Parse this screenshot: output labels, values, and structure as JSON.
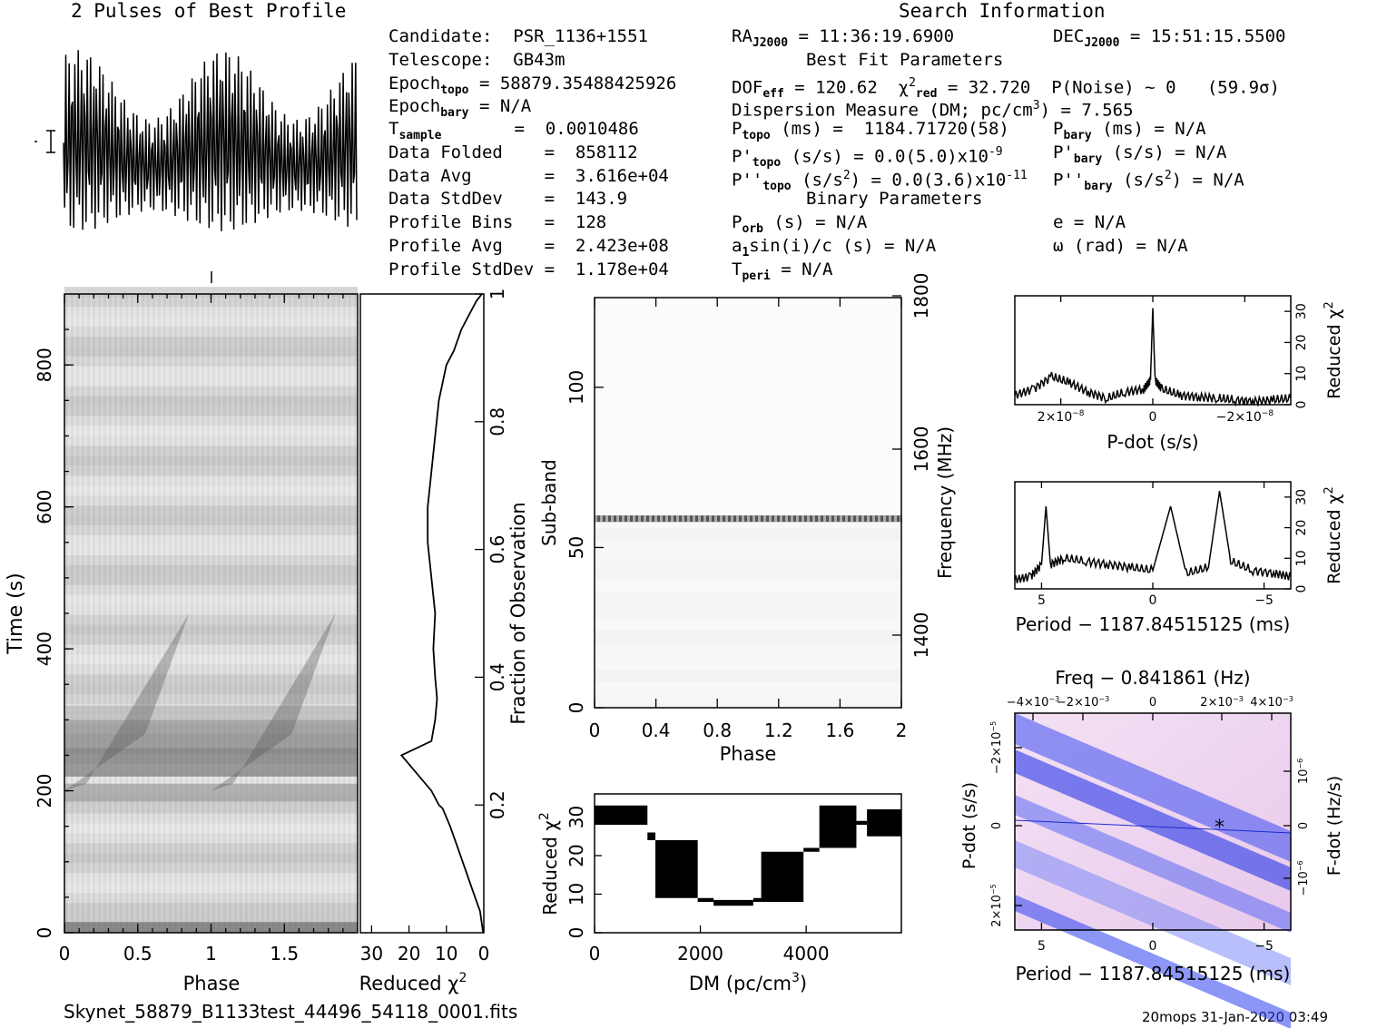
{
  "titles": {
    "profile": "2 Pulses of Best Profile",
    "search_info": "Search Information",
    "best_fit": "Best Fit Parameters",
    "binary": "Binary Parameters"
  },
  "info": {
    "candidate": "Candidate:  PSR_1136+1551",
    "telescope": "Telescope:  GB43m",
    "epoch_topo": "Epoch",
    "epoch_topo_sub": "topo",
    "epoch_topo_val": " = 58879.35488425926",
    "epoch_bary": "Epoch",
    "epoch_bary_sub": "bary",
    "epoch_bary_val": " = N/A",
    "tsample": "T",
    "tsample_sub": "sample",
    "tsample_val": "       =  0.0010486",
    "data_folded": "Data Folded    =  858112",
    "data_avg": "Data Avg       =  3.616e+04",
    "data_stddev": "Data StdDev    =  143.9",
    "profile_bins": "Profile Bins   =  128",
    "profile_avg": "Profile Avg    =  2.423e+08",
    "profile_stddev": "Profile StdDev =  1.178e+04"
  },
  "search": {
    "ra": "RA",
    "ra_sub": "J2000",
    "ra_val": " = 11:36:19.6900",
    "dec": "DEC",
    "dec_sub": "J2000",
    "dec_val": " = 15:51:15.5500",
    "dof": "DOF",
    "dof_sub": "eff",
    "dof_val": " = 120.62  χ",
    "chi_sup": "2",
    "chi_sub": "red",
    "chi_val": " = 32.720  P(Noise) ~ 0   (59.9σ)",
    "dm": "Dispersion Measure (DM; pc/cm",
    "dm_sup": "3",
    "dm_val": ") = 7.565",
    "ptopo": "P",
    "ptopo_sub": "topo",
    "ptopo_val": " (ms) =  1184.71720(58)",
    "pbary": "P",
    "pbary_sub": "bary",
    "pbary_val": " (ms) = N/A",
    "pdtopo": "P'",
    "pdtopo_sub": "topo",
    "pdtopo_val": " (s/s) = 0.0(5.0)x10",
    "pdtopo_sup": "-9",
    "pdbary": "P'",
    "pdbary_sub": "bary",
    "pdbary_val": " (s/s) = N/A",
    "pddtopo": "P''",
    "pddtopo_sub": "topo",
    "pddtopo_val": " (s/s",
    "pddtopo_sup1": "2",
    "pddtopo_val2": ") = 0.0(3.6)x10",
    "pddtopo_sup2": "-11",
    "pddbary": "P''",
    "pddbary_sub": "bary",
    "pddbary_val": " (s/s",
    "pddbary_sup": "2",
    "pddbary_val2": ") = N/A",
    "porb": "P",
    "porb_sub": "orb",
    "porb_val": " (s) = N/A",
    "ecc": "e = N/A",
    "asini": "a",
    "asini_sub": "1",
    "asini_val": "sin(i)/c (s) = N/A",
    "omega": "ω (rad) = N/A",
    "tperi": "T",
    "tperi_sub": "peri",
    "tperi_val": " = N/A"
  },
  "footer": {
    "filename": "Skynet_58879_B1133test_44496_54118_0001.fits",
    "stamp": "20mops 31-Jan-2020 03:49"
  },
  "colors": {
    "ink": "#000000",
    "ppdot_light": "#f2d6f0",
    "ppdot_dark": "#0a1ee6"
  },
  "chart_data": [
    {
      "type": "line",
      "title": "2 Pulses of Best Profile",
      "xlabel": "",
      "ylabel": "",
      "description_values": {
        "pulses": 2,
        "periods_per_profile": 2
      }
    },
    {
      "type": "heatmap",
      "xlabel": "Phase",
      "ylabel": "Time (s)",
      "right_label": "Fraction of Observation",
      "xlim": [
        0,
        2
      ],
      "ylim": [
        0,
        900
      ],
      "x_ticks": [
        "0",
        "0.5",
        "1",
        "1.5"
      ],
      "y_ticks": [
        "0",
        "200",
        "400",
        "600",
        "800"
      ],
      "right_ticks": [
        "0.2",
        "0.4",
        "0.6",
        "0.8",
        "1"
      ]
    },
    {
      "type": "line",
      "xlabel": "Reduced χ",
      "xlabel_sup": "2",
      "x_ticks": [
        "30",
        "20",
        "10",
        "0"
      ],
      "x": [
        0.2,
        1,
        3,
        5,
        7,
        9,
        11,
        12,
        14,
        22,
        14,
        13,
        12.5,
        13,
        13.5,
        13,
        14,
        15,
        15,
        14,
        13,
        12,
        10,
        8,
        6,
        4,
        2,
        0.5
      ],
      "y": [
        0,
        30,
        60,
        90,
        120,
        150,
        175,
        180,
        200,
        250,
        270,
        300,
        330,
        360,
        400,
        450,
        500,
        550,
        600,
        650,
        700,
        750,
        800,
        820,
        850,
        870,
        890,
        900
      ]
    },
    {
      "type": "heatmap",
      "xlabel": "Phase",
      "ylabel": "Sub-band",
      "right_label": "Frequency (MHz)",
      "xlim": [
        0,
        2
      ],
      "ylim": [
        0,
        128
      ],
      "x_ticks": [
        "0",
        "0.4",
        "0.8",
        "1.2",
        "1.6",
        "2"
      ],
      "y_ticks": [
        "0",
        "50",
        "100"
      ],
      "right_ticks": [
        "1400",
        "1600",
        "1800"
      ],
      "highlight_subband": 59
    },
    {
      "type": "line",
      "xlabel": "DM (pc/cm",
      "xlabel_sup": "3",
      "xlabel_end": ")",
      "ylabel": "Reduced χ",
      "ylabel_sup": "2",
      "x_ticks": [
        "0",
        "2000",
        "4000"
      ],
      "y_ticks": [
        "0",
        "10",
        "20",
        "30"
      ],
      "xlim": [
        0,
        5800
      ],
      "ylim": [
        0,
        36
      ],
      "segments": [
        {
          "x0": 0,
          "x1": 1000,
          "lo": 28,
          "hi": 33
        },
        {
          "x0": 1000,
          "x1": 1150,
          "lo": 24,
          "hi": 26
        },
        {
          "x0": 1150,
          "x1": 1950,
          "lo": 9,
          "hi": 24
        },
        {
          "x0": 1950,
          "x1": 2250,
          "lo": 8,
          "hi": 9
        },
        {
          "x0": 2250,
          "x1": 3000,
          "lo": 7,
          "hi": 8.5
        },
        {
          "x0": 3000,
          "x1": 3150,
          "lo": 8,
          "hi": 9
        },
        {
          "x0": 3150,
          "x1": 3950,
          "lo": 8,
          "hi": 21
        },
        {
          "x0": 3950,
          "x1": 4250,
          "lo": 21,
          "hi": 22
        },
        {
          "x0": 4250,
          "x1": 4950,
          "lo": 22,
          "hi": 33
        },
        {
          "x0": 4950,
          "x1": 5150,
          "lo": 28,
          "hi": 29
        },
        {
          "x0": 5150,
          "x1": 5800,
          "lo": 25,
          "hi": 32
        }
      ]
    },
    {
      "type": "line",
      "xlabel": "P-dot (s/s)",
      "ylabel": "Reduced χ",
      "ylabel_sup": "2",
      "x_ticks": [
        "2×10",
        "0",
        "−2×10"
      ],
      "x_tick_exp": "−8",
      "y_ticks": [
        "0",
        "10",
        "20",
        "30"
      ],
      "ylim": [
        0,
        35
      ],
      "x": [
        -3,
        -2.6,
        -2.2,
        -1.8,
        -1.4,
        -1.0,
        -0.6,
        -0.2,
        -0.05,
        0,
        0.05,
        0.2,
        0.6,
        1.0,
        1.4,
        1.8,
        2.2,
        2.6,
        3
      ],
      "y": [
        3,
        5,
        9,
        7,
        4,
        2,
        4,
        5,
        8,
        31,
        8,
        5,
        3,
        2.5,
        2,
        1.5,
        1,
        1.5,
        2
      ]
    },
    {
      "type": "line",
      "xlabel": "Period − 1187.84515125 (ms)",
      "ylabel": "Reduced χ",
      "ylabel_sup": "2",
      "x_ticks": [
        "5",
        "0",
        "−5"
      ],
      "y_ticks": [
        "0",
        "10",
        "20",
        "30"
      ],
      "ylim": [
        0,
        35
      ],
      "peaks_at": [
        4.8,
        -0.8,
        -3.0
      ],
      "x": [
        6.2,
        5.5,
        5.0,
        4.8,
        4.6,
        4,
        3,
        2,
        1,
        0,
        -0.8,
        -1.5,
        -2.5,
        -3,
        -3.5,
        -4.5,
        -5.5,
        -6.2
      ],
      "y": [
        3,
        4,
        8,
        27,
        8,
        10,
        9,
        8,
        7,
        6,
        27,
        5,
        7,
        32,
        9,
        6,
        5,
        4
      ]
    },
    {
      "type": "heatmap",
      "title": "Freq − 0.841861 (Hz)",
      "xlabel": "Period − 1187.84515125 (ms)",
      "ylabel": "P-dot (s/s)",
      "right_label": "F-dot (Hz/s)",
      "x_ticks": [
        "5",
        "0",
        "−5"
      ],
      "top_ticks": [
        "−4×10",
        "−2×10",
        "0",
        "2×10",
        "4×10"
      ],
      "top_tick_exp": "−3",
      "left_ticks": [
        "−2×10",
        "0",
        "2×10"
      ],
      "left_tick_exp": "−5",
      "right_ticks": [
        "10",
        "0",
        "−10"
      ],
      "right_tick_exp": "−6",
      "best_point": {
        "period": -3.0,
        "pdot": 0
      }
    }
  ]
}
